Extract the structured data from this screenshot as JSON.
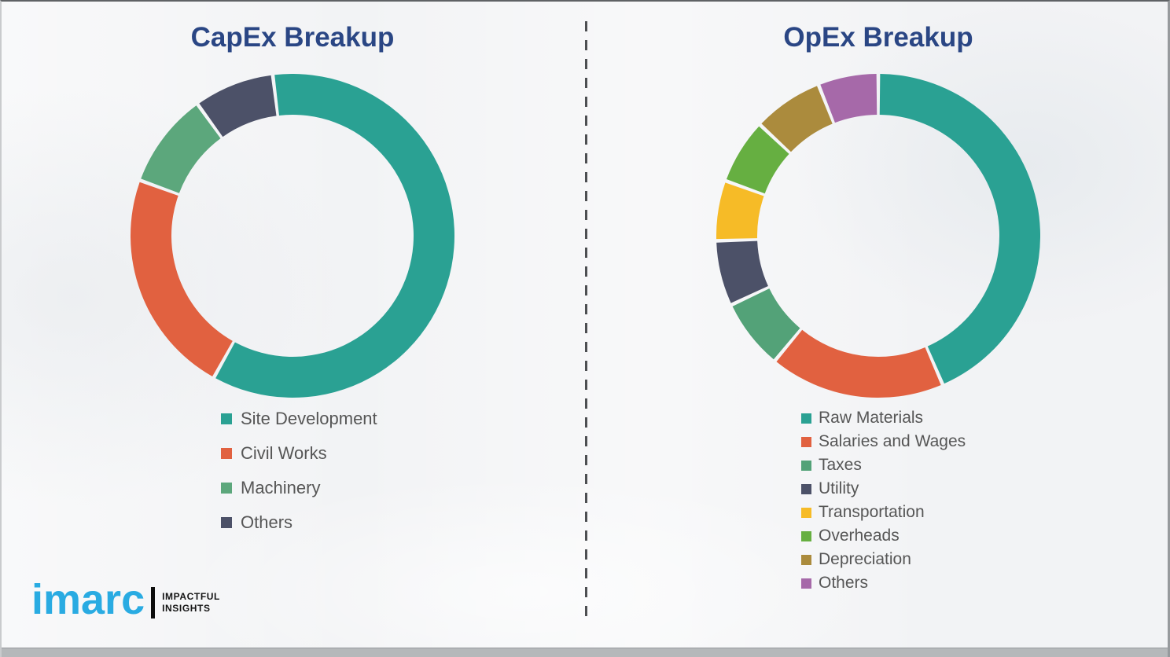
{
  "page": {
    "left_title": "CapEx Breakup",
    "right_title": "OpEx Breakup",
    "title_color": "#2a4684",
    "legend_text_color": "#565656",
    "background_color": "#f2f3f5",
    "divider_style": "vertical-dashed"
  },
  "logo": {
    "brand": "imarc",
    "brand_color": "#29abe2",
    "tagline_line1": "IMPACTFUL",
    "tagline_line2": "INSIGHTS"
  },
  "chart_data": [
    {
      "type": "pie",
      "donut": true,
      "title": "CapEx Breakup",
      "start_angle": -7,
      "legend_position": "bottom-left",
      "series": [
        {
          "label": "Site Development",
          "value": 60,
          "color": "#2aa193"
        },
        {
          "label": "Civil Works",
          "value": 22.5,
          "color": "#e16140"
        },
        {
          "label": "Machinery",
          "value": 9.5,
          "color": "#5ca77c"
        },
        {
          "label": "Others",
          "value": 8,
          "color": "#4c5168"
        }
      ],
      "values_unit": "percent-estimated-from-arc-angles"
    },
    {
      "type": "pie",
      "donut": true,
      "title": "OpEx Breakup",
      "start_angle": 0,
      "legend_position": "bottom-left",
      "series": [
        {
          "label": "Raw Materials",
          "value": 43.5,
          "color": "#2aa193"
        },
        {
          "label": "Salaries and Wages",
          "value": 17.5,
          "color": "#e16140"
        },
        {
          "label": "Taxes",
          "value": 7,
          "color": "#53a278"
        },
        {
          "label": "Utility",
          "value": 6.5,
          "color": "#4c5168"
        },
        {
          "label": "Transportation",
          "value": 6,
          "color": "#f6bb27"
        },
        {
          "label": "Overheads",
          "value": 6.5,
          "color": "#66af41"
        },
        {
          "label": "Depreciation",
          "value": 7,
          "color": "#ab8b3d"
        },
        {
          "label": "Others",
          "value": 6,
          "color": "#a669a9"
        }
      ],
      "values_unit": "percent-estimated-from-arc-angles"
    }
  ]
}
